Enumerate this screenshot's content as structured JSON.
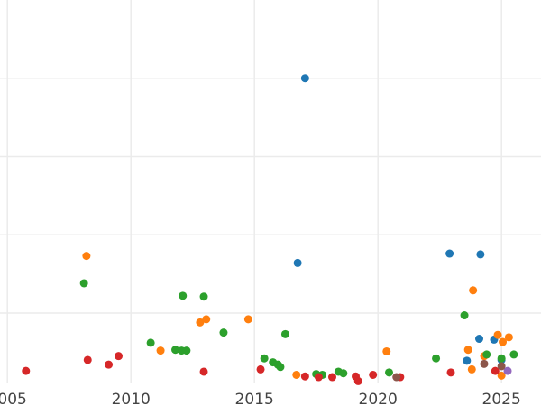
{
  "chart_data": {
    "type": "scatter",
    "title": "",
    "xlabel": "",
    "ylabel": "",
    "grid": true,
    "xlim": [
      2004.7,
      2026.6
    ],
    "ylim": [
      -0.5,
      24
    ],
    "x_ticks": [
      {
        "value": 2005,
        "label": "2005"
      },
      {
        "value": 2010,
        "label": "2010"
      },
      {
        "value": 2015,
        "label": "2015"
      },
      {
        "value": 2020,
        "label": "2020"
      },
      {
        "value": 2025,
        "label": "2025"
      }
    ],
    "y_gridlines": [
      4,
      9,
      14,
      19
    ],
    "series": [
      {
        "color": "#1f77b4",
        "points": [
          {
            "x": 2017.05,
            "y": 19.0
          },
          {
            "x": 2016.75,
            "y": 7.2
          },
          {
            "x": 2022.9,
            "y": 7.8
          },
          {
            "x": 2024.15,
            "y": 7.75
          },
          {
            "x": 2024.1,
            "y": 2.35
          },
          {
            "x": 2023.6,
            "y": 0.95
          },
          {
            "x": 2024.7,
            "y": 2.3
          },
          {
            "x": 2025.0,
            "y": 1.0
          }
        ]
      },
      {
        "color": "#ff7f0e",
        "points": [
          {
            "x": 2008.2,
            "y": 7.65
          },
          {
            "x": 2011.2,
            "y": 1.6
          },
          {
            "x": 2012.8,
            "y": 3.4
          },
          {
            "x": 2013.05,
            "y": 3.6
          },
          {
            "x": 2014.75,
            "y": 3.6
          },
          {
            "x": 2016.7,
            "y": 0.05
          },
          {
            "x": 2020.35,
            "y": 1.55
          },
          {
            "x": 2023.65,
            "y": 1.65
          },
          {
            "x": 2023.85,
            "y": 5.45
          },
          {
            "x": 2023.8,
            "y": 0.4
          },
          {
            "x": 2024.3,
            "y": 1.25
          },
          {
            "x": 2024.85,
            "y": 2.6
          },
          {
            "x": 2025.3,
            "y": 2.45
          },
          {
            "x": 2025.05,
            "y": 2.15
          },
          {
            "x": 2025.0,
            "y": 0.0
          }
        ]
      },
      {
        "color": "#2ca02c",
        "points": [
          {
            "x": 2008.1,
            "y": 5.9
          },
          {
            "x": 2010.8,
            "y": 2.1
          },
          {
            "x": 2011.8,
            "y": 1.65
          },
          {
            "x": 2012.05,
            "y": 1.6
          },
          {
            "x": 2012.25,
            "y": 1.6
          },
          {
            "x": 2012.1,
            "y": 5.1
          },
          {
            "x": 2012.95,
            "y": 5.05
          },
          {
            "x": 2013.75,
            "y": 2.75
          },
          {
            "x": 2015.4,
            "y": 1.1
          },
          {
            "x": 2015.75,
            "y": 0.85
          },
          {
            "x": 2015.95,
            "y": 0.7
          },
          {
            "x": 2016.05,
            "y": 0.55
          },
          {
            "x": 2016.25,
            "y": 2.65
          },
          {
            "x": 2017.5,
            "y": 0.1
          },
          {
            "x": 2017.75,
            "y": 0.05
          },
          {
            "x": 2018.4,
            "y": 0.25
          },
          {
            "x": 2018.6,
            "y": 0.15
          },
          {
            "x": 2020.45,
            "y": 0.2
          },
          {
            "x": 2022.35,
            "y": 1.1
          },
          {
            "x": 2023.5,
            "y": 3.85
          },
          {
            "x": 2024.4,
            "y": 1.35
          },
          {
            "x": 2025.0,
            "y": 1.1
          },
          {
            "x": 2025.5,
            "y": 1.35
          }
        ]
      },
      {
        "color": "#d62728",
        "points": [
          {
            "x": 2005.75,
            "y": 0.3
          },
          {
            "x": 2008.25,
            "y": 1.0
          },
          {
            "x": 2009.1,
            "y": 0.7
          },
          {
            "x": 2009.5,
            "y": 1.25
          },
          {
            "x": 2012.95,
            "y": 0.25
          },
          {
            "x": 2015.25,
            "y": 0.4
          },
          {
            "x": 2017.05,
            "y": -0.05
          },
          {
            "x": 2017.6,
            "y": -0.1
          },
          {
            "x": 2018.15,
            "y": -0.1
          },
          {
            "x": 2019.1,
            "y": -0.05
          },
          {
            "x": 2019.2,
            "y": -0.35
          },
          {
            "x": 2019.8,
            "y": 0.05
          },
          {
            "x": 2020.9,
            "y": -0.1
          },
          {
            "x": 2022.95,
            "y": 0.2
          },
          {
            "x": 2024.75,
            "y": 0.3
          }
        ]
      },
      {
        "color": "#9467bd",
        "points": [
          {
            "x": 2025.25,
            "y": 0.3
          }
        ]
      },
      {
        "color": "#8c564b",
        "points": [
          {
            "x": 2020.75,
            "y": -0.1
          },
          {
            "x": 2024.3,
            "y": 0.75
          },
          {
            "x": 2025.0,
            "y": 0.6
          }
        ]
      }
    ]
  }
}
